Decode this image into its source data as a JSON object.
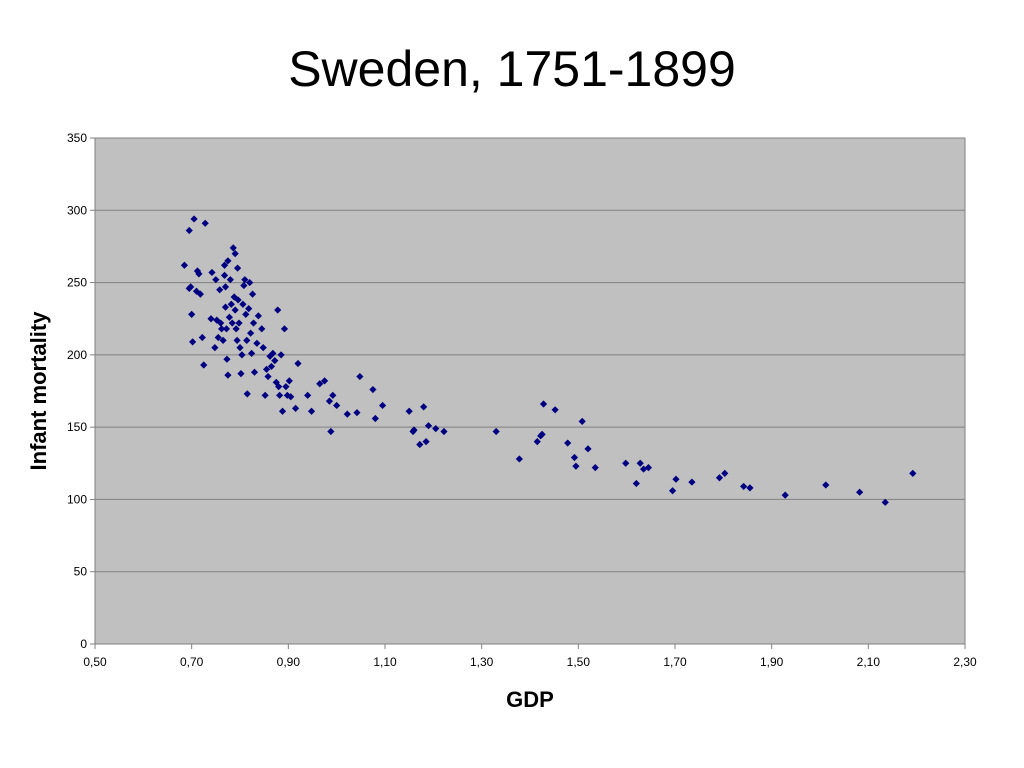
{
  "title": "Sweden, 1751-1899",
  "chart_data": {
    "type": "scatter",
    "xlabel": "GDP",
    "ylabel": "Infant mortality",
    "xlim": [
      0.5,
      2.3
    ],
    "ylim": [
      0,
      350
    ],
    "x_ticks": [
      "0,50",
      "0,70",
      "0,90",
      "1,10",
      "1,30",
      "1,50",
      "1,70",
      "1,90",
      "2,10",
      "2,30"
    ],
    "y_ticks": [
      "0",
      "50",
      "100",
      "150",
      "200",
      "250",
      "300",
      "350"
    ],
    "grid": "horizontal",
    "plot_background": "#C0C0C0",
    "marker_color": "#000080",
    "points": [
      [
        0.685,
        262
      ],
      [
        0.695,
        286
      ],
      [
        0.705,
        294
      ],
      [
        0.728,
        291
      ],
      [
        0.695,
        246
      ],
      [
        0.698,
        247
      ],
      [
        0.7,
        228
      ],
      [
        0.702,
        209
      ],
      [
        0.71,
        244
      ],
      [
        0.712,
        258
      ],
      [
        0.715,
        256
      ],
      [
        0.718,
        242
      ],
      [
        0.722,
        212
      ],
      [
        0.725,
        193
      ],
      [
        0.74,
        225
      ],
      [
        0.742,
        257
      ],
      [
        0.748,
        205
      ],
      [
        0.75,
        252
      ],
      [
        0.752,
        224
      ],
      [
        0.755,
        212
      ],
      [
        0.758,
        245
      ],
      [
        0.76,
        222
      ],
      [
        0.762,
        218
      ],
      [
        0.765,
        210
      ],
      [
        0.768,
        262
      ],
      [
        0.768,
        255
      ],
      [
        0.77,
        247
      ],
      [
        0.77,
        233
      ],
      [
        0.772,
        218
      ],
      [
        0.773,
        197
      ],
      [
        0.775,
        186
      ],
      [
        0.775,
        265
      ],
      [
        0.778,
        226
      ],
      [
        0.78,
        252
      ],
      [
        0.782,
        235
      ],
      [
        0.784,
        222
      ],
      [
        0.786,
        274
      ],
      [
        0.788,
        240
      ],
      [
        0.79,
        270
      ],
      [
        0.79,
        231
      ],
      [
        0.792,
        218
      ],
      [
        0.794,
        210
      ],
      [
        0.795,
        260
      ],
      [
        0.796,
        238
      ],
      [
        0.798,
        222
      ],
      [
        0.8,
        205
      ],
      [
        0.802,
        187
      ],
      [
        0.804,
        200
      ],
      [
        0.806,
        235
      ],
      [
        0.808,
        248
      ],
      [
        0.81,
        252
      ],
      [
        0.812,
        228
      ],
      [
        0.814,
        210
      ],
      [
        0.815,
        173
      ],
      [
        0.818,
        232
      ],
      [
        0.82,
        250
      ],
      [
        0.822,
        215
      ],
      [
        0.824,
        201
      ],
      [
        0.826,
        242
      ],
      [
        0.828,
        222
      ],
      [
        0.83,
        188
      ],
      [
        0.835,
        208
      ],
      [
        0.838,
        227
      ],
      [
        0.845,
        218
      ],
      [
        0.848,
        205
      ],
      [
        0.852,
        172
      ],
      [
        0.855,
        190
      ],
      [
        0.858,
        185
      ],
      [
        0.862,
        199
      ],
      [
        0.865,
        192
      ],
      [
        0.868,
        201
      ],
      [
        0.872,
        196
      ],
      [
        0.875,
        181
      ],
      [
        0.878,
        231
      ],
      [
        0.88,
        178
      ],
      [
        0.882,
        172
      ],
      [
        0.885,
        200
      ],
      [
        0.888,
        161
      ],
      [
        0.892,
        218
      ],
      [
        0.895,
        178
      ],
      [
        0.898,
        172
      ],
      [
        0.902,
        182
      ],
      [
        0.905,
        171
      ],
      [
        0.915,
        163
      ],
      [
        0.92,
        194
      ],
      [
        0.94,
        172
      ],
      [
        0.948,
        161
      ],
      [
        0.965,
        180
      ],
      [
        0.975,
        182
      ],
      [
        0.985,
        168
      ],
      [
        0.988,
        147
      ],
      [
        0.992,
        172
      ],
      [
        1.0,
        165
      ],
      [
        1.022,
        159
      ],
      [
        1.042,
        160
      ],
      [
        1.048,
        185
      ],
      [
        1.075,
        176
      ],
      [
        1.08,
        156
      ],
      [
        1.095,
        165
      ],
      [
        1.15,
        161
      ],
      [
        1.158,
        147
      ],
      [
        1.16,
        148
      ],
      [
        1.172,
        138
      ],
      [
        1.18,
        164
      ],
      [
        1.185,
        140
      ],
      [
        1.19,
        151
      ],
      [
        1.205,
        149
      ],
      [
        1.222,
        147
      ],
      [
        1.33,
        147
      ],
      [
        1.378,
        128
      ],
      [
        1.415,
        140
      ],
      [
        1.422,
        144
      ],
      [
        1.425,
        145
      ],
      [
        1.428,
        166
      ],
      [
        1.452,
        162
      ],
      [
        1.478,
        139
      ],
      [
        1.492,
        129
      ],
      [
        1.495,
        123
      ],
      [
        1.508,
        154
      ],
      [
        1.52,
        135
      ],
      [
        1.535,
        122
      ],
      [
        1.598,
        125
      ],
      [
        1.62,
        111
      ],
      [
        1.628,
        125
      ],
      [
        1.635,
        121
      ],
      [
        1.645,
        122
      ],
      [
        1.695,
        106
      ],
      [
        1.702,
        114
      ],
      [
        1.735,
        112
      ],
      [
        1.792,
        115
      ],
      [
        1.803,
        118
      ],
      [
        1.842,
        109
      ],
      [
        1.855,
        108
      ],
      [
        1.928,
        103
      ],
      [
        2.012,
        110
      ],
      [
        2.082,
        105
      ],
      [
        2.135,
        98
      ],
      [
        2.192,
        118
      ]
    ]
  }
}
